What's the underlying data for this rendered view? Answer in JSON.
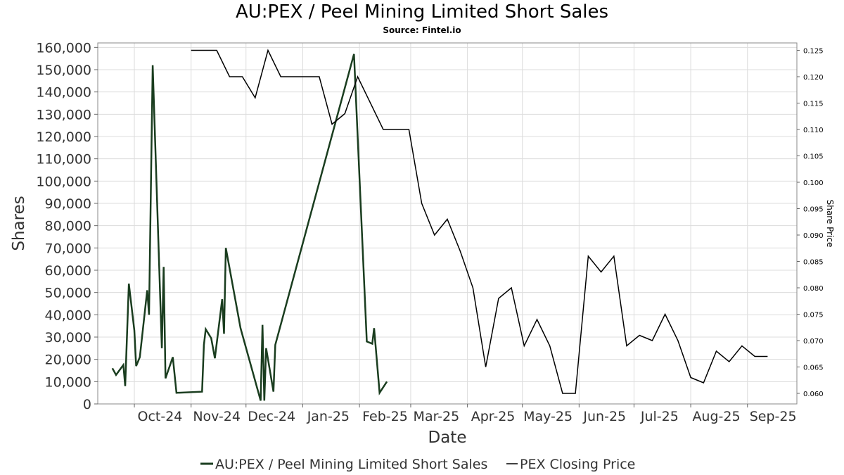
{
  "chart_data": {
    "type": "line",
    "title": "AU:PEX / Peel Mining Limited Short Sales",
    "subtitle": "Source: Fintel.io",
    "xlabel": "Date",
    "ylabel": "Shares",
    "y2label": "Share Price",
    "x_ticks": [
      "Oct-24",
      "Nov-24",
      "Dec-24",
      "Jan-25",
      "Feb-25",
      "Mar-25",
      "Apr-25",
      "May-25",
      "Jun-25",
      "Jul-25",
      "Aug-25",
      "Sep-25"
    ],
    "ylim": [
      0,
      162000
    ],
    "y_ticks": [
      0,
      10000,
      20000,
      30000,
      40000,
      50000,
      60000,
      70000,
      80000,
      90000,
      100000,
      110000,
      120000,
      130000,
      140000,
      150000,
      160000
    ],
    "y_tick_labels": [
      "0",
      "10,000",
      "20,000",
      "30,000",
      "40,000",
      "50,000",
      "60,000",
      "70,000",
      "80,000",
      "90,000",
      "100,000",
      "110,000",
      "120,000",
      "130,000",
      "140,000",
      "150,000",
      "160,000"
    ],
    "y2lim": [
      0.058,
      0.1264
    ],
    "y2_ticks": [
      0.06,
      0.065,
      0.07,
      0.075,
      0.08,
      0.085,
      0.09,
      0.095,
      0.1,
      0.105,
      0.11,
      0.115,
      0.12,
      0.125
    ],
    "y2_tick_labels": [
      "0.060",
      "0.065",
      "0.070",
      "0.075",
      "0.080",
      "0.085",
      "0.090",
      "0.095",
      "0.100",
      "0.105",
      "0.110",
      "0.115",
      "0.120",
      "0.125"
    ],
    "grid": true,
    "legend_position": "bottom",
    "series": [
      {
        "name": "AU:PEX / Peel Mining Limited Short Sales",
        "axis": "left",
        "color": "#1a3d1f",
        "points": [
          [
            "2024-09-19",
            16000
          ],
          [
            "2024-09-21",
            13000
          ],
          [
            "2024-09-25",
            17500
          ],
          [
            "2024-09-26",
            8000
          ],
          [
            "2024-09-28",
            54000
          ],
          [
            "2024-10-01",
            33000
          ],
          [
            "2024-10-02",
            17000
          ],
          [
            "2024-10-04",
            21000
          ],
          [
            "2024-10-08",
            51000
          ],
          [
            "2024-10-09",
            40000
          ],
          [
            "2024-10-11",
            152000
          ],
          [
            "2024-10-16",
            25000
          ],
          [
            "2024-10-17",
            61500
          ],
          [
            "2024-10-18",
            11500
          ],
          [
            "2024-10-22",
            21000
          ],
          [
            "2024-10-24",
            5000
          ],
          [
            "2024-11-07",
            5500
          ],
          [
            "2024-11-08",
            26500
          ],
          [
            "2024-11-09",
            33500
          ],
          [
            "2024-11-12",
            29500
          ],
          [
            "2024-11-14",
            20500
          ],
          [
            "2024-11-18",
            47000
          ],
          [
            "2024-11-19",
            31500
          ],
          [
            "2024-11-20",
            70000
          ],
          [
            "2024-11-28",
            34000
          ],
          [
            "2024-12-09",
            1500
          ],
          [
            "2024-12-10",
            35500
          ],
          [
            "2024-12-11",
            1500
          ],
          [
            "2024-12-12",
            25000
          ],
          [
            "2024-12-16",
            5500
          ],
          [
            "2024-12-17",
            26500
          ],
          [
            "2025-01-29",
            157000
          ],
          [
            "2025-02-05",
            28000
          ],
          [
            "2025-02-08",
            27000
          ],
          [
            "2025-02-09",
            34000
          ],
          [
            "2025-02-12",
            5000
          ],
          [
            "2025-02-16",
            10000
          ]
        ]
      },
      {
        "name": "PEX Closing Price",
        "axis": "right",
        "color": "#000000",
        "points": [
          [
            "2024-11-01",
            0.125
          ],
          [
            "2024-11-15",
            0.125
          ],
          [
            "2024-11-22",
            0.12
          ],
          [
            "2024-11-29",
            0.12
          ],
          [
            "2024-12-06",
            0.116
          ],
          [
            "2024-12-13",
            0.125
          ],
          [
            "2024-12-20",
            0.12
          ],
          [
            "2025-01-10",
            0.12
          ],
          [
            "2025-01-17",
            0.111
          ],
          [
            "2025-01-24",
            0.113
          ],
          [
            "2025-01-31",
            0.12
          ],
          [
            "2025-02-14",
            0.11
          ],
          [
            "2025-02-28",
            0.11
          ],
          [
            "2025-03-07",
            0.096
          ],
          [
            "2025-03-14",
            0.09
          ],
          [
            "2025-03-21",
            0.093
          ],
          [
            "2025-03-28",
            0.087
          ],
          [
            "2025-04-04",
            0.08
          ],
          [
            "2025-04-11",
            0.065
          ],
          [
            "2025-04-18",
            0.078
          ],
          [
            "2025-04-25",
            0.08
          ],
          [
            "2025-05-02",
            0.069
          ],
          [
            "2025-05-09",
            0.074
          ],
          [
            "2025-05-16",
            0.069
          ],
          [
            "2025-05-23",
            0.06
          ],
          [
            "2025-05-30",
            0.06
          ],
          [
            "2025-06-06",
            0.086
          ],
          [
            "2025-06-13",
            0.083
          ],
          [
            "2025-06-20",
            0.086
          ],
          [
            "2025-06-27",
            0.069
          ],
          [
            "2025-07-04",
            0.071
          ],
          [
            "2025-07-11",
            0.07
          ],
          [
            "2025-07-18",
            0.075
          ],
          [
            "2025-07-25",
            0.07
          ],
          [
            "2025-08-01",
            0.063
          ],
          [
            "2025-08-08",
            0.062
          ],
          [
            "2025-08-15",
            0.068
          ],
          [
            "2025-08-22",
            0.066
          ],
          [
            "2025-08-29",
            0.069
          ],
          [
            "2025-09-05",
            0.067
          ],
          [
            "2025-09-12",
            0.067
          ]
        ]
      }
    ]
  }
}
